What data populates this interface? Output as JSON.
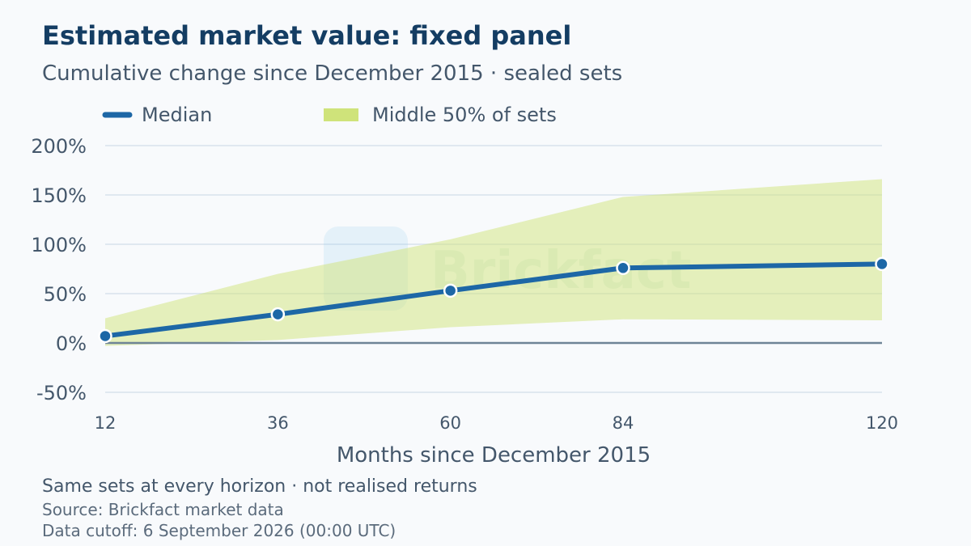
{
  "title": "Estimated market value: fixed panel",
  "subtitle": "Cumulative change since December 2015 · sealed sets",
  "legend": {
    "median_label": "Median",
    "band_label": "Middle 50% of sets"
  },
  "watermark": "Brickfact",
  "footer": {
    "note": "Same sets at every horizon · not realised returns",
    "source": "Source: Brickfact market data",
    "cutoff": "Data cutoff: 6 September 2026 (00:00 UTC)"
  },
  "colors": {
    "median": "#1d67a6",
    "band": "#cfe37a",
    "zero_line": "#6e8496",
    "grid": "#d8e2ec",
    "marker_stroke": "#ffffff"
  },
  "chart_data": {
    "type": "line",
    "xlabel": "Months since December 2015",
    "ylabel": "",
    "x": [
      12,
      36,
      60,
      84,
      120
    ],
    "xlim": [
      12,
      120
    ],
    "ylim": [
      -50,
      200
    ],
    "yticks": [
      -50,
      0,
      50,
      100,
      150,
      200
    ],
    "ytick_labels": [
      "-50%",
      "0%",
      "50%",
      "100%",
      "150%",
      "200%"
    ],
    "xtick_labels": [
      "12",
      "36",
      "60",
      "84",
      "120"
    ],
    "series": [
      {
        "name": "Median",
        "kind": "line",
        "values": [
          7,
          29,
          53,
          76,
          80
        ]
      },
      {
        "name": "Middle 50% of sets",
        "kind": "band",
        "lower": [
          -3,
          3,
          16,
          24,
          23
        ],
        "upper": [
          25,
          70,
          105,
          148,
          166
        ]
      }
    ],
    "grid": true,
    "legend_position": "top-left"
  }
}
